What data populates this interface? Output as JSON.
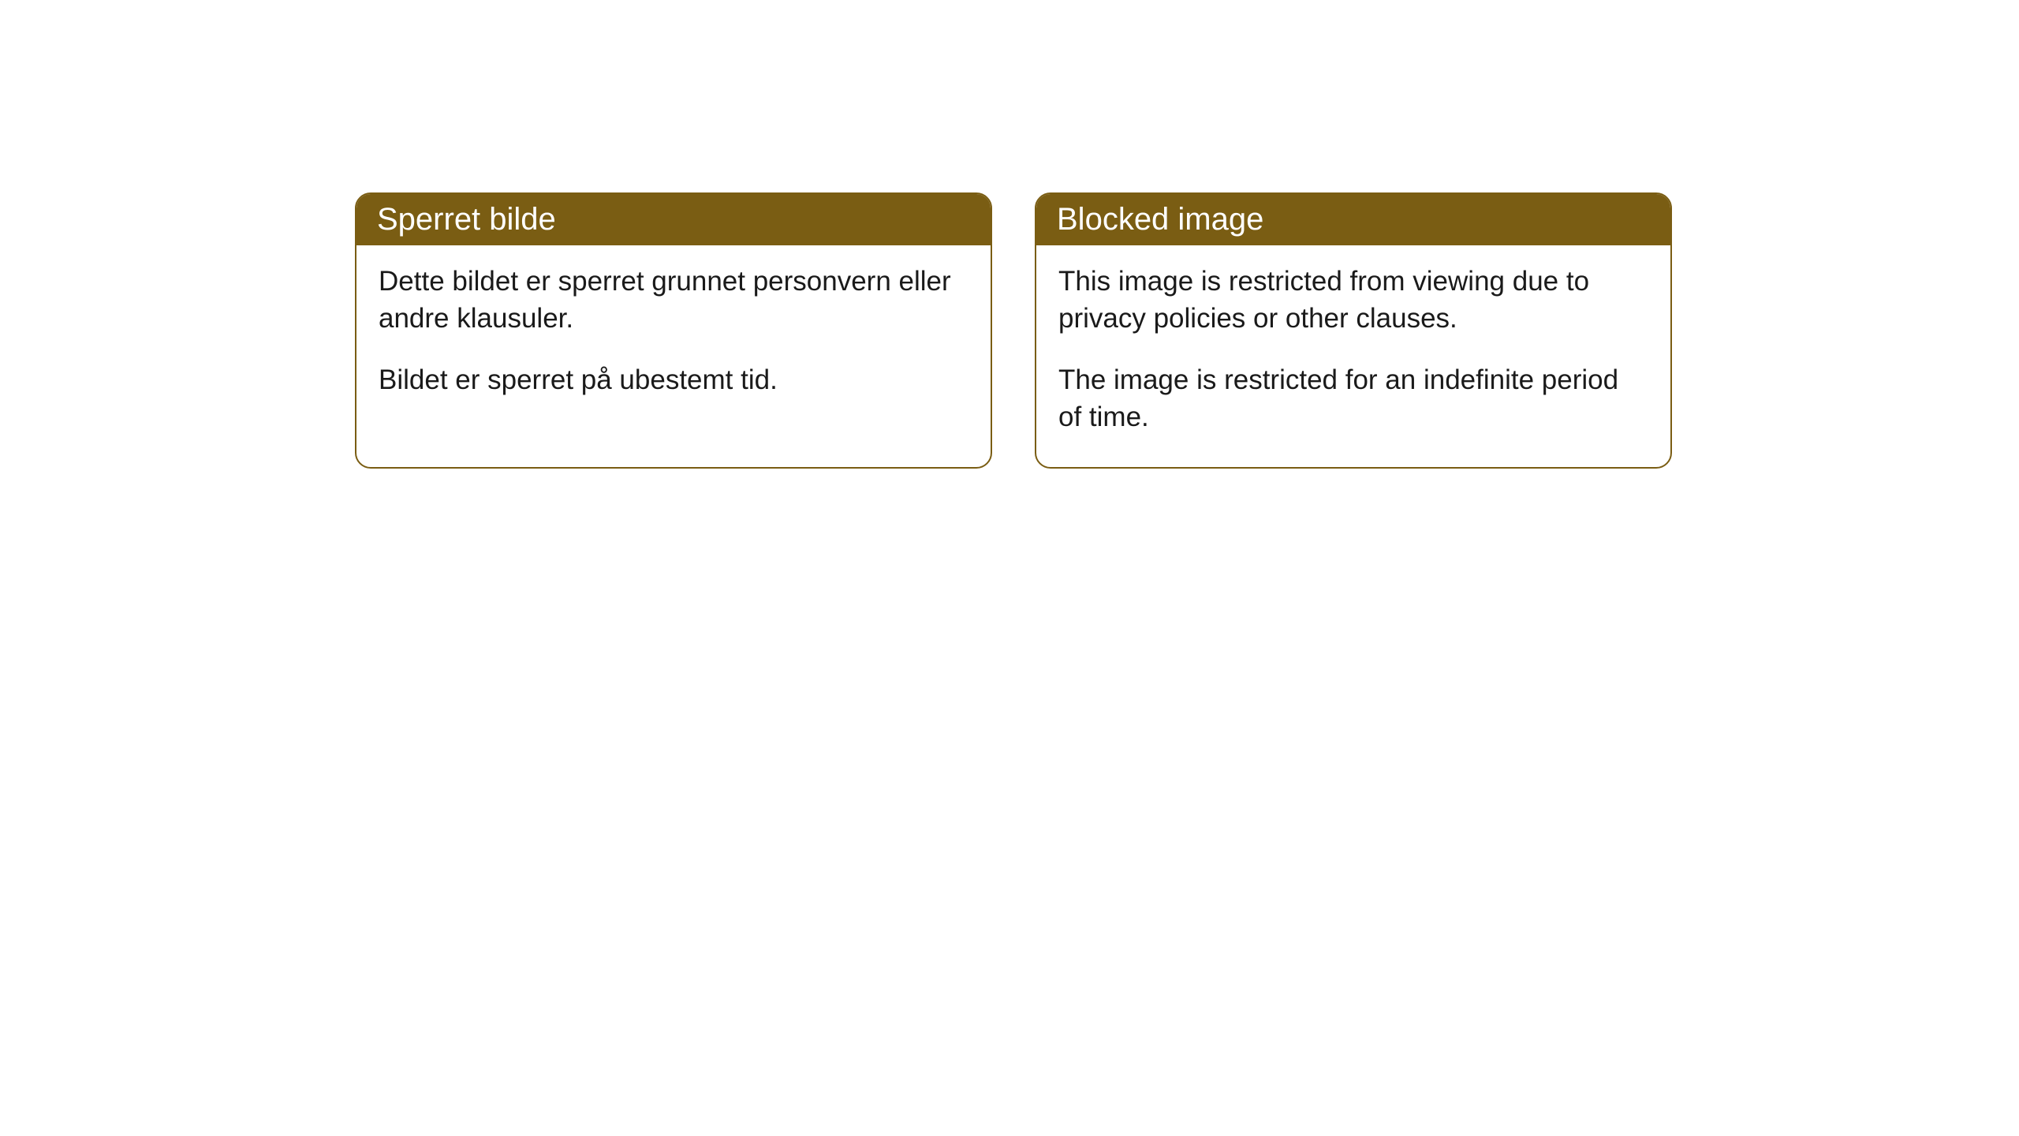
{
  "cards": [
    {
      "title": "Sperret bilde",
      "paragraph1": "Dette bildet er sperret grunnet personvern eller andre klausuler.",
      "paragraph2": "Bildet er sperret på ubestemt tid."
    },
    {
      "title": "Blocked image",
      "paragraph1": "This image is restricted from viewing due to privacy policies or other clauses.",
      "paragraph2": "The image is restricted for an indefinite period of time."
    }
  ],
  "styling": {
    "header_background": "#7a5d13",
    "header_text_color": "#ffffff",
    "border_color": "#7a5d13",
    "body_text_color": "#1a1a1a",
    "background_color": "#ffffff",
    "border_radius": 20,
    "title_fontsize": 40,
    "body_fontsize": 35
  }
}
